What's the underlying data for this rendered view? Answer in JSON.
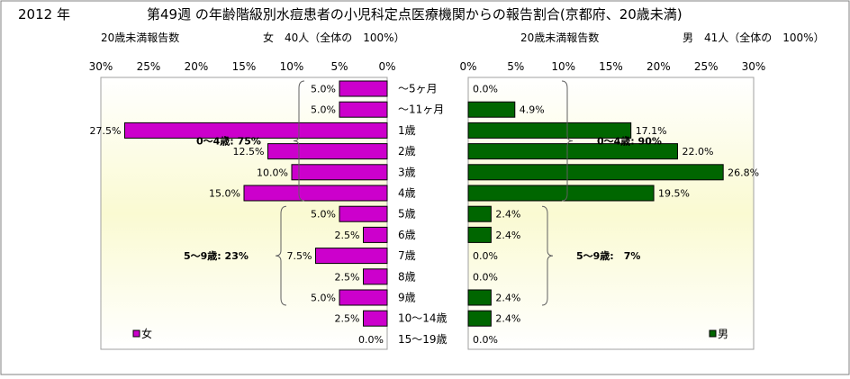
{
  "header": {
    "year": "2012 年",
    "title": "第49週 の年齢階級別水痘患者の小児科定点医療機関からの報告割合(京都府、20歳未満)"
  },
  "chart_data": [
    {
      "type": "bar",
      "orientation": "horizontal",
      "direction": "reversed",
      "report_label": "20歳未満報告数",
      "summary": "女　40人（全体の　100%）",
      "legend": "女",
      "series_color": "#cc00cc",
      "xlim": [
        0,
        30
      ],
      "xticks": [
        "30%",
        "25%",
        "20%",
        "15%",
        "10%",
        "5%",
        "0%"
      ],
      "values": [
        5.0,
        5.0,
        27.5,
        12.5,
        10.0,
        15.0,
        5.0,
        2.5,
        7.5,
        2.5,
        5.0,
        2.5,
        0.0
      ],
      "value_labels": [
        "5.0%",
        "5.0%",
        "27.5%",
        "12.5%",
        "10.0%",
        "15.0%",
        "5.0%",
        "2.5%",
        "7.5%",
        "2.5%",
        "5.0%",
        "2.5%",
        "0.0%"
      ],
      "group_annotations": [
        "0～4歳: 75%",
        "5～9歳: 23%"
      ]
    },
    {
      "type": "bar",
      "orientation": "horizontal",
      "direction": "normal",
      "report_label": "20歳未満報告数",
      "summary": "男　41人（全体の　100%）",
      "legend": "男",
      "series_color": "#006600",
      "xlim": [
        0,
        30
      ],
      "xticks": [
        "0%",
        "5%",
        "10%",
        "15%",
        "20%",
        "25%",
        "30%"
      ],
      "values": [
        0.0,
        4.9,
        17.1,
        22.0,
        26.8,
        19.5,
        2.4,
        2.4,
        0.0,
        0.0,
        2.4,
        2.4,
        0.0
      ],
      "value_labels": [
        "0.0%",
        "4.9%",
        "17.1%",
        "22.0%",
        "26.8%",
        "19.5%",
        "2.4%",
        "2.4%",
        "0.0%",
        "0.0%",
        "2.4%",
        "2.4%",
        "0.0%"
      ],
      "group_annotations": [
        "0～4歳: 90%",
        "5～9歳:　7%"
      ]
    }
  ],
  "categories": [
    "～5ヶ月",
    "～11ヶ月",
    "1歳",
    "2歳",
    "3歳",
    "4歳",
    "5歳",
    "6歳",
    "7歳",
    "8歳",
    "9歳",
    "10～14歳",
    "15～19歳"
  ]
}
